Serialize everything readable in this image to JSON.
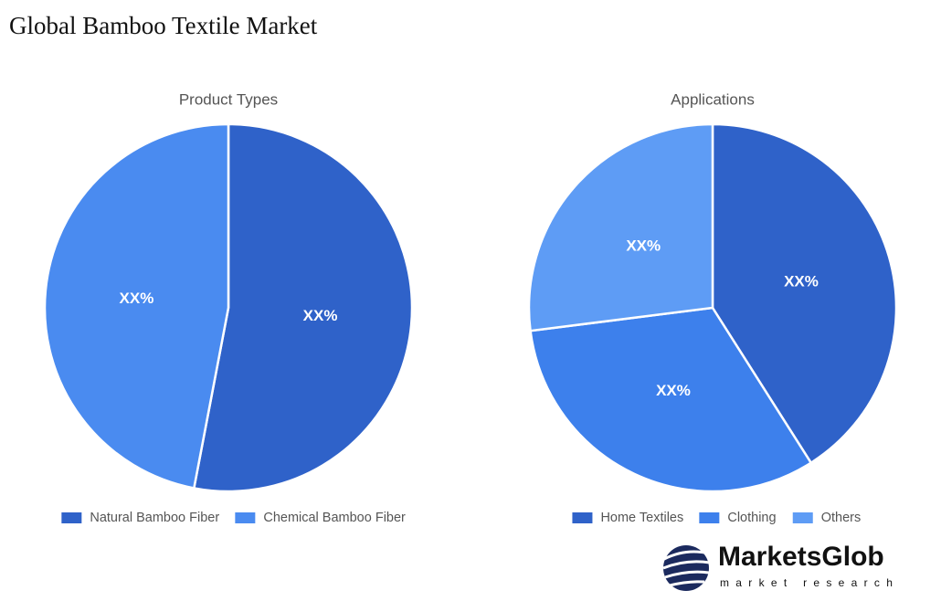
{
  "title": "Global Bamboo Textile Market",
  "logo": {
    "name": "MarketsGlob",
    "tagline": "market research"
  },
  "chart_data": [
    {
      "type": "pie",
      "title": "Product Types",
      "categories": [
        "Natural Bamboo Fiber",
        "Chemical Bamboo Fiber"
      ],
      "values": [
        53,
        47
      ],
      "value_labels": [
        "XX%",
        "XX%"
      ],
      "colors": [
        "#2f62c9",
        "#4a8bf0"
      ]
    },
    {
      "type": "pie",
      "title": "Applications",
      "categories": [
        "Home Textiles",
        "Clothing",
        "Others"
      ],
      "values": [
        41,
        32,
        27
      ],
      "value_labels": [
        "XX%",
        "XX%",
        "XX%"
      ],
      "colors": [
        "#2f62c9",
        "#3d80ec",
        "#5e9cf5"
      ]
    }
  ]
}
